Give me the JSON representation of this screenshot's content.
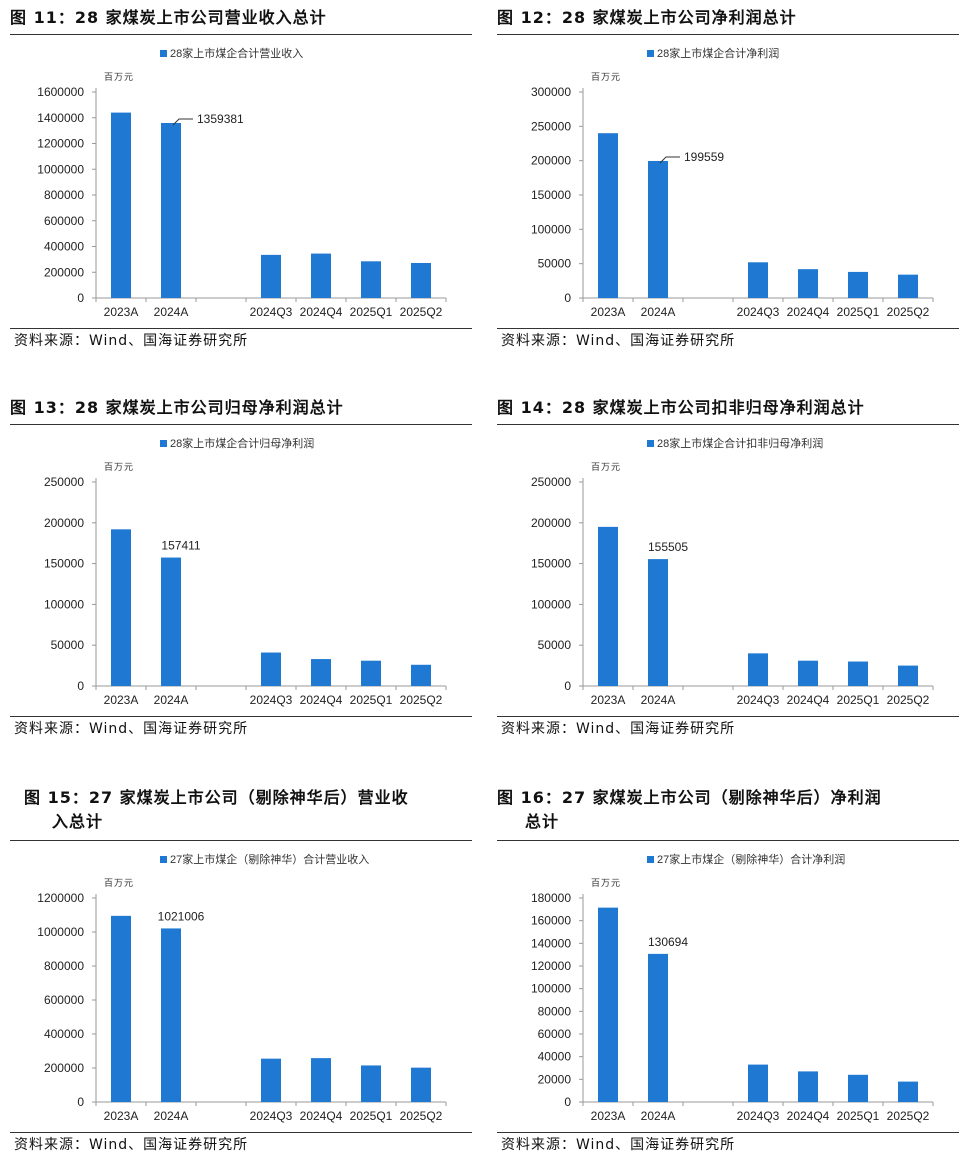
{
  "figures": [
    {
      "label": "图 11：",
      "title_lines": [
        "28 家煤炭上市公司营业收入总计"
      ],
      "source": "资料来源：Wind、国海证券研究所",
      "chart_data": {
        "type": "bar",
        "categories": [
          "2023A",
          "2024A",
          "",
          "2024Q3",
          "2024Q4",
          "2025Q1",
          "2025Q2"
        ],
        "series": [
          {
            "name": "28家上市煤企合计营业收入",
            "values": [
              1440000,
              1359381,
              null,
              335000,
              345000,
              285000,
              272000
            ]
          }
        ],
        "ylim": [
          0,
          1600000
        ],
        "yticks": [
          0,
          200000,
          400000,
          600000,
          800000,
          1000000,
          1200000,
          1400000,
          1600000
        ],
        "unit": "百万元",
        "annotation": {
          "index": 1,
          "text": "1359381",
          "leader": true
        },
        "color": "#1f78d1",
        "legend": "top-center"
      }
    },
    {
      "label": "图 12：",
      "title_lines": [
        "28 家煤炭上市公司净利润总计"
      ],
      "source": "资料来源：Wind、国海证券研究所",
      "chart_data": {
        "type": "bar",
        "categories": [
          "2023A",
          "2024A",
          "",
          "2024Q3",
          "2024Q4",
          "2025Q1",
          "2025Q2"
        ],
        "series": [
          {
            "name": "28家上市煤企合计净利润",
            "values": [
              240000,
              199559,
              null,
              52000,
              42000,
              38000,
              34000
            ]
          }
        ],
        "ylim": [
          0,
          300000
        ],
        "yticks": [
          0,
          50000,
          100000,
          150000,
          200000,
          250000,
          300000
        ],
        "unit": "百万元",
        "annotation": {
          "index": 1,
          "text": "199559",
          "leader": true
        },
        "color": "#1f78d1",
        "legend": "top-center"
      }
    },
    {
      "label": "图 13：",
      "title_lines": [
        "28 家煤炭上市公司归母净利润总计"
      ],
      "source": "资料来源：Wind、国海证券研究所",
      "chart_data": {
        "type": "bar",
        "categories": [
          "2023A",
          "2024A",
          "",
          "2024Q3",
          "2024Q4",
          "2025Q1",
          "2025Q2"
        ],
        "series": [
          {
            "name": "28家上市煤企合计归母净利润",
            "values": [
              192000,
              157411,
              null,
              41000,
              33000,
              31000,
              26000
            ]
          }
        ],
        "ylim": [
          0,
          250000
        ],
        "yticks": [
          0,
          50000,
          100000,
          150000,
          200000,
          250000
        ],
        "unit": "百万元",
        "annotation": {
          "index": 1,
          "text": "157411",
          "leader": false
        },
        "color": "#1f78d1",
        "legend": "top-center"
      }
    },
    {
      "label": "图 14：",
      "title_lines": [
        "28 家煤炭上市公司扣非归母净利润总计"
      ],
      "source": "资料来源：Wind、国海证券研究所",
      "chart_data": {
        "type": "bar",
        "categories": [
          "2023A",
          "2024A",
          "",
          "2024Q3",
          "2024Q4",
          "2025Q1",
          "2025Q2"
        ],
        "series": [
          {
            "name": "28家上市煤企合计扣非归母净利润",
            "values": [
              195000,
              155505,
              null,
              40000,
              31000,
              30000,
              25000
            ]
          }
        ],
        "ylim": [
          0,
          250000
        ],
        "yticks": [
          0,
          50000,
          100000,
          150000,
          200000,
          250000
        ],
        "unit": "百万元",
        "annotation": {
          "index": 1,
          "text": "155505",
          "leader": false
        },
        "color": "#1f78d1",
        "legend": "top-center"
      }
    },
    {
      "label": "图 15：",
      "title_lines": [
        "27 家煤炭上市公司（剔除神华后）营业收",
        "入总计"
      ],
      "source": "资料来源：Wind、国海证券研究所",
      "chart_data": {
        "type": "bar",
        "categories": [
          "2023A",
          "2024A",
          "",
          "2024Q3",
          "2024Q4",
          "2025Q1",
          "2025Q2"
        ],
        "series": [
          {
            "name": "27家上市煤企（剔除神华）合计营业收入",
            "values": [
              1095000,
              1021006,
              null,
              255000,
              258000,
              215000,
              202000
            ]
          }
        ],
        "ylim": [
          0,
          1200000
        ],
        "yticks": [
          0,
          200000,
          400000,
          600000,
          800000,
          1000000,
          1200000
        ],
        "unit": "百万元",
        "annotation": {
          "index": 1,
          "text": "1021006",
          "leader": false
        },
        "color": "#1f78d1",
        "legend": "top-center"
      }
    },
    {
      "label": "图 16：",
      "title_lines": [
        "27 家煤炭上市公司（剔除神华后）净利润",
        "总计"
      ],
      "source": "资料来源：Wind、国海证券研究所",
      "chart_data": {
        "type": "bar",
        "categories": [
          "2023A",
          "2024A",
          "",
          "2024Q3",
          "2024Q4",
          "2025Q1",
          "2025Q2"
        ],
        "series": [
          {
            "name": "27家上市煤企（剔除神华）合计净利润",
            "values": [
              171500,
              130694,
              null,
              33000,
              27000,
              24000,
              18000
            ]
          }
        ],
        "ylim": [
          0,
          180000
        ],
        "yticks": [
          0,
          20000,
          40000,
          60000,
          80000,
          100000,
          120000,
          140000,
          160000,
          180000
        ],
        "unit": "百万元",
        "annotation": {
          "index": 1,
          "text": "130694",
          "leader": false
        },
        "color": "#1f78d1",
        "legend": "top-center"
      }
    }
  ]
}
